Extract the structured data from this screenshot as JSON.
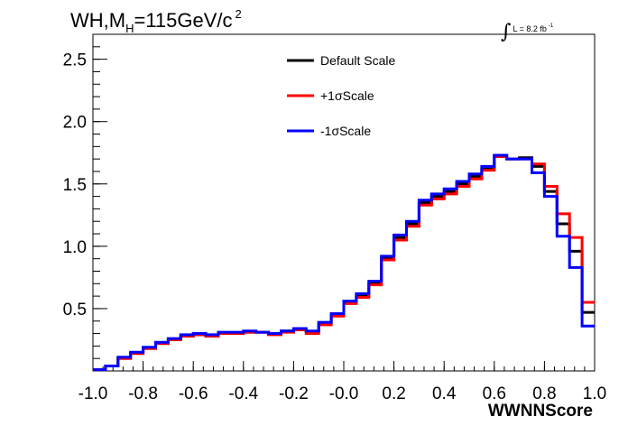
{
  "title": {
    "main": "WH,M",
    "sub": "H",
    "value": "=115GeV/c",
    "sup": "2"
  },
  "lumi": {
    "integral": "∫",
    "text": "L = 8.2 fb",
    "sup": "-1"
  },
  "chart_data": {
    "type": "line",
    "title": "WH,MH=115GeV/c2",
    "xlabel": "WWNNScore",
    "ylabel": "",
    "xlim": [
      -1.0,
      1.0
    ],
    "ylim": [
      0,
      2.7
    ],
    "x_ticks": [
      "-1.0",
      "-0.8",
      "-0.6",
      "-0.4",
      "-0.2",
      "-0.0",
      "0.2",
      "0.4",
      "0.6",
      "0.8",
      "1.0"
    ],
    "y_ticks": [
      "0.5",
      "1.0",
      "1.5",
      "2.0",
      "2.5"
    ],
    "legend_position": "top-center",
    "bin_edges": [
      -1.0,
      -0.95,
      -0.9,
      -0.85,
      -0.8,
      -0.75,
      -0.7,
      -0.65,
      -0.6,
      -0.55,
      -0.5,
      -0.45,
      -0.4,
      -0.35,
      -0.3,
      -0.25,
      -0.2,
      -0.15,
      -0.1,
      -0.05,
      0.0,
      0.05,
      0.1,
      0.15,
      0.2,
      0.25,
      0.3,
      0.35,
      0.4,
      0.45,
      0.5,
      0.55,
      0.6,
      0.65,
      0.7,
      0.75,
      0.8,
      0.85,
      0.9,
      0.95,
      1.0
    ],
    "series": [
      {
        "name": "Default Scale",
        "color": "#000000",
        "values": [
          0.01,
          0.04,
          0.1,
          0.14,
          0.18,
          0.22,
          0.25,
          0.28,
          0.29,
          0.28,
          0.3,
          0.3,
          0.31,
          0.31,
          0.3,
          0.32,
          0.33,
          0.31,
          0.38,
          0.45,
          0.55,
          0.6,
          0.7,
          0.9,
          1.07,
          1.18,
          1.35,
          1.4,
          1.44,
          1.5,
          1.56,
          1.62,
          1.72,
          1.7,
          1.71,
          1.64,
          1.44,
          1.18,
          0.96,
          0.47
        ]
      },
      {
        "name": "+1σScale",
        "color": "#ff0000",
        "values": [
          0.01,
          0.04,
          0.1,
          0.14,
          0.18,
          0.22,
          0.25,
          0.28,
          0.29,
          0.28,
          0.3,
          0.3,
          0.31,
          0.31,
          0.29,
          0.31,
          0.33,
          0.3,
          0.37,
          0.44,
          0.54,
          0.59,
          0.69,
          0.89,
          1.05,
          1.16,
          1.33,
          1.38,
          1.42,
          1.48,
          1.54,
          1.61,
          1.72,
          1.7,
          1.7,
          1.66,
          1.48,
          1.26,
          1.07,
          0.55
        ]
      },
      {
        "name": "-1σScale",
        "color": "#0000ff",
        "values": [
          0.01,
          0.04,
          0.11,
          0.15,
          0.19,
          0.23,
          0.26,
          0.29,
          0.3,
          0.29,
          0.31,
          0.31,
          0.32,
          0.31,
          0.3,
          0.32,
          0.34,
          0.32,
          0.39,
          0.46,
          0.56,
          0.62,
          0.72,
          0.92,
          1.09,
          1.2,
          1.37,
          1.42,
          1.46,
          1.52,
          1.58,
          1.64,
          1.73,
          1.7,
          1.7,
          1.59,
          1.4,
          1.08,
          0.83,
          0.36
        ]
      }
    ]
  }
}
